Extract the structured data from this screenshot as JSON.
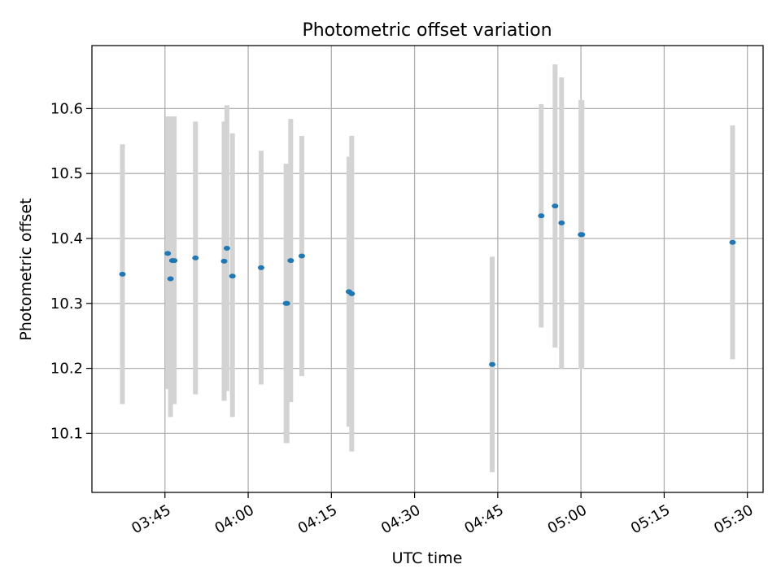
{
  "chart_data": {
    "type": "scatter",
    "title": "Photometric offset variation",
    "xlabel": "UTC time",
    "ylabel": "Photometric offset",
    "x_ticks": [
      "03:45",
      "04:00",
      "04:15",
      "04:30",
      "04:45",
      "05:00",
      "05:15",
      "05:30"
    ],
    "y_ticks": [
      "10.1",
      "10.2",
      "10.3",
      "10.4",
      "10.5",
      "10.6"
    ],
    "xlim": [
      "03:31:50",
      "05:32:50"
    ],
    "ylim": [
      10.009,
      10.697
    ],
    "grid": true,
    "colors": {
      "point": "#1f77b4",
      "errorbar": "#d3d3d3",
      "grid": "#b0b0b0"
    },
    "series": [
      {
        "points": [
          {
            "x": "03:37:20",
            "y": 10.345,
            "ylow": 10.145,
            "yhigh": 10.545
          },
          {
            "x": "03:45:30",
            "y": 10.377,
            "ylow": 10.168,
            "yhigh": 10.588
          },
          {
            "x": "03:46:00",
            "y": 10.338,
            "ylow": 10.125,
            "yhigh": 10.588
          },
          {
            "x": "03:46:20",
            "y": 10.366,
            "ylow": 10.145,
            "yhigh": 10.588
          },
          {
            "x": "03:46:40",
            "y": 10.366,
            "ylow": 10.145,
            "yhigh": 10.588
          },
          {
            "x": "03:50:30",
            "y": 10.37,
            "ylow": 10.16,
            "yhigh": 10.58
          },
          {
            "x": "03:55:40",
            "y": 10.365,
            "ylow": 10.15,
            "yhigh": 10.58
          },
          {
            "x": "03:56:10",
            "y": 10.385,
            "ylow": 10.165,
            "yhigh": 10.605
          },
          {
            "x": "03:57:10",
            "y": 10.342,
            "ylow": 10.125,
            "yhigh": 10.562
          },
          {
            "x": "04:02:20",
            "y": 10.355,
            "ylow": 10.175,
            "yhigh": 10.535
          },
          {
            "x": "04:06:50",
            "y": 10.3,
            "ylow": 10.085,
            "yhigh": 10.515
          },
          {
            "x": "04:07:00",
            "y": 10.3,
            "ylow": 10.085,
            "yhigh": 10.515
          },
          {
            "x": "04:07:40",
            "y": 10.366,
            "ylow": 10.148,
            "yhigh": 10.584
          },
          {
            "x": "04:09:40",
            "y": 10.373,
            "ylow": 10.188,
            "yhigh": 10.558
          },
          {
            "x": "04:18:10",
            "y": 10.318,
            "ylow": 10.11,
            "yhigh": 10.526
          },
          {
            "x": "04:18:40",
            "y": 10.315,
            "ylow": 10.072,
            "yhigh": 10.558
          },
          {
            "x": "04:44:00",
            "y": 10.206,
            "ylow": 10.04,
            "yhigh": 10.372
          },
          {
            "x": "04:52:50",
            "y": 10.435,
            "ylow": 10.263,
            "yhigh": 10.607
          },
          {
            "x": "04:55:20",
            "y": 10.45,
            "ylow": 10.232,
            "yhigh": 10.668
          },
          {
            "x": "04:56:30",
            "y": 10.424,
            "ylow": 10.2,
            "yhigh": 10.648
          },
          {
            "x": "05:00:00",
            "y": 10.406,
            "ylow": 10.199,
            "yhigh": 10.613
          },
          {
            "x": "05:00:10",
            "y": 10.406,
            "ylow": 10.199,
            "yhigh": 10.613
          },
          {
            "x": "05:27:20",
            "y": 10.394,
            "ylow": 10.214,
            "yhigh": 10.574
          }
        ]
      }
    ]
  }
}
